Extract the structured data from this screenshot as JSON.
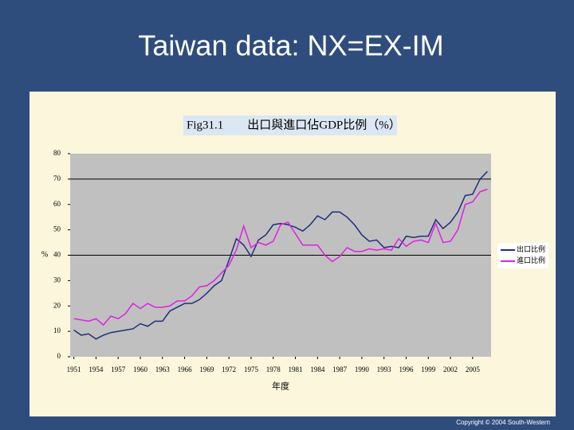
{
  "slide_title": "Taiwan data: NX=EX-IM",
  "copyright": "Copyright © 2004 South-Western",
  "chart_data": {
    "type": "line",
    "title": "Fig31.1　　出口與進口佔GDP比例（%）",
    "x_label": "年度",
    "y_label": "%",
    "x": [
      1951,
      1952,
      1953,
      1954,
      1955,
      1956,
      1957,
      1958,
      1959,
      1960,
      1961,
      1962,
      1963,
      1964,
      1965,
      1966,
      1967,
      1968,
      1969,
      1970,
      1971,
      1972,
      1973,
      1974,
      1975,
      1976,
      1977,
      1978,
      1979,
      1980,
      1981,
      1982,
      1983,
      1984,
      1985,
      1986,
      1987,
      1988,
      1989,
      1990,
      1991,
      1992,
      1993,
      1994,
      1995,
      1996,
      1997,
      1998,
      1999,
      2000,
      2001,
      2002,
      2003,
      2004,
      2005,
      2006,
      2007
    ],
    "xlim": [
      1950.5,
      2007.5
    ],
    "xticks": [
      1951,
      1954,
      1957,
      1960,
      1963,
      1966,
      1969,
      1972,
      1975,
      1978,
      1981,
      1984,
      1987,
      1990,
      1993,
      1996,
      1999,
      2002,
      2005
    ],
    "ylim": [
      0,
      80
    ],
    "yticks": [
      0,
      10,
      20,
      30,
      40,
      50,
      60,
      70,
      80
    ],
    "grid_values": [
      40,
      70
    ],
    "series": [
      {
        "name": "出口比例",
        "color": "#1f2f7a",
        "values": [
          10.5,
          8.5,
          9,
          7,
          8.5,
          9.5,
          10,
          10.5,
          11,
          13,
          12,
          14,
          14,
          18,
          19.5,
          21,
          21,
          22.5,
          25,
          28,
          30,
          38,
          46.5,
          44,
          39.5,
          46,
          48,
          52,
          52.5,
          52,
          51,
          49.5,
          52,
          55.5,
          54,
          57,
          57,
          55,
          52,
          48,
          45.5,
          46,
          43,
          43.5,
          43,
          47.5,
          47,
          47.5,
          47.5,
          54,
          50.5,
          53,
          57,
          63.5,
          64,
          70,
          73
        ]
      },
      {
        "name": "進口比例",
        "color": "#e020e0",
        "values": [
          15,
          14.5,
          14,
          15,
          12.5,
          16,
          15,
          17,
          21,
          19,
          21,
          19.5,
          19.5,
          20,
          22,
          22,
          24,
          27.5,
          28,
          30,
          33,
          36,
          42,
          51.5,
          43,
          45,
          44,
          45.5,
          52,
          53,
          48.5,
          44,
          44,
          44,
          40,
          37.5,
          39.5,
          43,
          41.5,
          41.5,
          42.5,
          42,
          42.5,
          42,
          46.5,
          43.5,
          45.5,
          46,
          45,
          52.5,
          45,
          45.5,
          50,
          60,
          61,
          65,
          66
        ]
      }
    ]
  }
}
